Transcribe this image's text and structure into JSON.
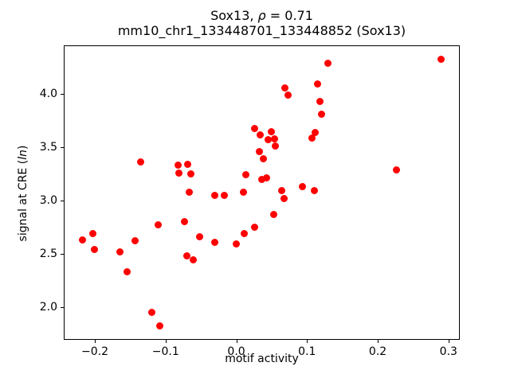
{
  "figure": {
    "title_line1": {
      "prefix": "Sox13, ",
      "rho": "ρ",
      "suffix": " = 0.71"
    },
    "title_line2": "mm10_chr1_133448701_133448852 (Sox13)",
    "background_color": "#ffffff",
    "axis_color": "#000000"
  },
  "chart_data": {
    "type": "scatter",
    "title": "Sox13, ρ = 0.71",
    "subtitle": "mm10_chr1_133448701_133448852 (Sox13)",
    "xlabel": "motif activity",
    "ylabel": "signal at CRE (ln)",
    "ylabel_parts": {
      "prefix": "signal at CRE (",
      "italic": "ln",
      "suffix": ")"
    },
    "marker_color": "#ff0000",
    "marker_shape": "circle",
    "grid": false,
    "legend": "none",
    "xlim": [
      -0.244,
      0.316
    ],
    "ylim": [
      1.69,
      4.46
    ],
    "xticks": {
      "values": [
        -0.2,
        -0.1,
        0.0,
        0.1,
        0.2,
        0.3
      ],
      "labels": [
        "−0.2",
        "−0.1",
        "0.0",
        "0.1",
        "0.2",
        "0.3"
      ]
    },
    "yticks": {
      "values": [
        2.0,
        2.5,
        3.0,
        3.5,
        4.0
      ],
      "labels": [
        "2.0",
        "2.5",
        "3.0",
        "3.5",
        "4.0"
      ]
    },
    "points": [
      [
        -0.217,
        2.63
      ],
      [
        -0.203,
        2.69
      ],
      [
        -0.201,
        2.54
      ],
      [
        -0.165,
        2.52
      ],
      [
        -0.154,
        2.33
      ],
      [
        -0.143,
        2.62
      ],
      [
        -0.135,
        3.36
      ],
      [
        -0.12,
        1.95
      ],
      [
        -0.11,
        2.77
      ],
      [
        -0.108,
        1.82
      ],
      [
        -0.082,
        3.33
      ],
      [
        -0.081,
        3.26
      ],
      [
        -0.073,
        2.8
      ],
      [
        -0.07,
        2.48
      ],
      [
        -0.069,
        3.34
      ],
      [
        -0.067,
        3.08
      ],
      [
        -0.064,
        3.25
      ],
      [
        -0.061,
        2.44
      ],
      [
        -0.052,
        2.66
      ],
      [
        -0.031,
        3.05
      ],
      [
        -0.031,
        2.61
      ],
      [
        -0.017,
        3.05
      ],
      [
        0.0,
        2.59
      ],
      [
        0.01,
        3.08
      ],
      [
        0.011,
        2.69
      ],
      [
        0.013,
        3.24
      ],
      [
        0.026,
        2.75
      ],
      [
        0.026,
        3.68
      ],
      [
        0.033,
        3.46
      ],
      [
        0.034,
        3.62
      ],
      [
        0.036,
        3.2
      ],
      [
        0.038,
        3.39
      ],
      [
        0.043,
        3.21
      ],
      [
        0.045,
        3.57
      ],
      [
        0.049,
        3.65
      ],
      [
        0.053,
        2.87
      ],
      [
        0.054,
        3.58
      ],
      [
        0.055,
        3.51
      ],
      [
        0.064,
        3.09
      ],
      [
        0.067,
        3.02
      ],
      [
        0.069,
        4.06
      ],
      [
        0.073,
        3.99
      ],
      [
        0.094,
        3.13
      ],
      [
        0.107,
        3.59
      ],
      [
        0.11,
        3.09
      ],
      [
        0.111,
        3.64
      ],
      [
        0.115,
        4.1
      ],
      [
        0.118,
        3.93
      ],
      [
        0.12,
        3.81
      ],
      [
        0.13,
        4.29
      ],
      [
        0.226,
        3.29
      ],
      [
        0.289,
        4.33
      ]
    ]
  }
}
